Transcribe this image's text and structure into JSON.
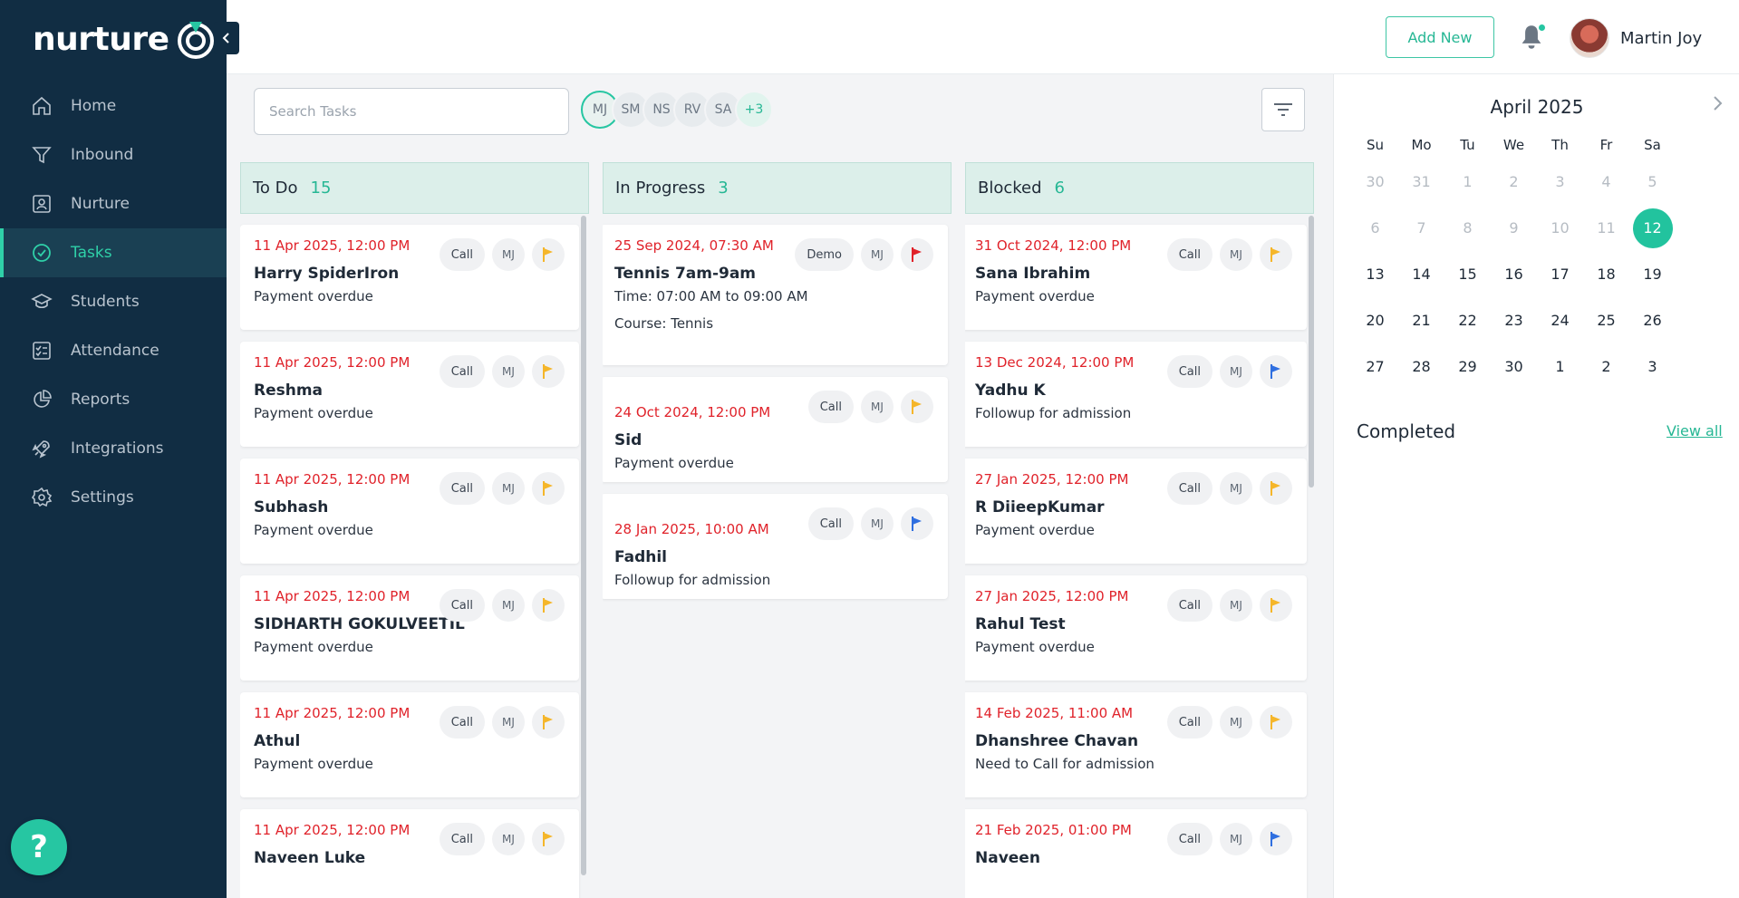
{
  "app": {
    "logo_text": "nurture",
    "colors": {
      "sidebar": "#112d43",
      "accent": "#26c6a2",
      "danger": "#e0222a",
      "flag_yellow": "#f5b62a",
      "flag_red": "#e0222a",
      "flag_blue": "#2f6fe0"
    }
  },
  "sidebar": {
    "items": [
      {
        "label": "Home",
        "icon": "home-icon"
      },
      {
        "label": "Inbound",
        "icon": "filter-funnel-icon"
      },
      {
        "label": "Nurture",
        "icon": "contact-card-icon"
      },
      {
        "label": "Tasks",
        "icon": "check-circle-icon"
      },
      {
        "label": "Students",
        "icon": "graduation-cap-icon"
      },
      {
        "label": "Attendance",
        "icon": "checklist-icon"
      },
      {
        "label": "Reports",
        "icon": "pie-chart-icon"
      },
      {
        "label": "Integrations",
        "icon": "rocket-icon"
      },
      {
        "label": "Settings",
        "icon": "gear-icon"
      }
    ],
    "help_label": "?"
  },
  "header": {
    "add_new": "Add New",
    "user_name": "Martin Joy"
  },
  "toolbar": {
    "search_placeholder": "Search Tasks",
    "assignees": [
      "MJ",
      "SM",
      "NS",
      "RV",
      "SA",
      "+3"
    ]
  },
  "columns": [
    {
      "title": "To Do",
      "count": "15",
      "cards": [
        {
          "date": "11 Apr 2025, 12:00 PM",
          "type": "Call",
          "owner": "MJ",
          "flag": "yellow",
          "name": "Harry SpiderIron",
          "desc": "Payment overdue"
        },
        {
          "date": "11 Apr 2025, 12:00 PM",
          "type": "Call",
          "owner": "MJ",
          "flag": "yellow",
          "name": "Reshma",
          "desc": "Payment overdue"
        },
        {
          "date": "11 Apr 2025, 12:00 PM",
          "type": "Call",
          "owner": "MJ",
          "flag": "yellow",
          "name": "Subhash",
          "desc": "Payment overdue"
        },
        {
          "date": "11 Apr 2025, 12:00 PM",
          "type": "Call",
          "owner": "MJ",
          "flag": "yellow",
          "name": "SIDHARTH GOKULVEETIL",
          "desc": "Payment overdue"
        },
        {
          "date": "11 Apr 2025, 12:00 PM",
          "type": "Call",
          "owner": "MJ",
          "flag": "yellow",
          "name": "Athul",
          "desc": "Payment overdue"
        },
        {
          "date": "11 Apr 2025, 12:00 PM",
          "type": "Call",
          "owner": "MJ",
          "flag": "yellow",
          "name": "Naveen Luke",
          "desc": ""
        }
      ]
    },
    {
      "title": "In Progress",
      "count": "3",
      "cards": [
        {
          "date": "25 Sep 2024, 07:30 AM",
          "type": "Demo",
          "owner": "MJ",
          "flag": "red",
          "name": "Tennis 7am-9am",
          "time_label": "Time:",
          "time_value": "07:00 AM to 09:00 AM",
          "course_label": "Course:",
          "course_value": "Tennis"
        },
        {
          "date": "24 Oct 2024, 12:00 PM",
          "type": "Call",
          "owner": "MJ",
          "flag": "yellow",
          "name": "Sid",
          "desc": "Payment overdue"
        },
        {
          "date": "28 Jan 2025, 10:00 AM",
          "type": "Call",
          "owner": "MJ",
          "flag": "blue",
          "name": "Fadhil",
          "desc": "Followup for admission"
        }
      ]
    },
    {
      "title": "Blocked",
      "count": "6",
      "cards": [
        {
          "date": "31 Oct 2024, 12:00 PM",
          "type": "Call",
          "owner": "MJ",
          "flag": "yellow",
          "name": "Sana Ibrahim",
          "desc": "Payment overdue"
        },
        {
          "date": "13 Dec 2024, 12:00 PM",
          "type": "Call",
          "owner": "MJ",
          "flag": "blue",
          "name": "Yadhu K",
          "desc": "Followup for admission"
        },
        {
          "date": "27 Jan 2025, 12:00 PM",
          "type": "Call",
          "owner": "MJ",
          "flag": "yellow",
          "name": "R DiieepKumar",
          "desc": "Payment overdue"
        },
        {
          "date": "27 Jan 2025, 12:00 PM",
          "type": "Call",
          "owner": "MJ",
          "flag": "yellow",
          "name": "Rahul Test",
          "desc": "Payment overdue"
        },
        {
          "date": "14 Feb 2025, 11:00 AM",
          "type": "Call",
          "owner": "MJ",
          "flag": "yellow",
          "name": "Dhanshree Chavan",
          "desc": "Need to Call for admission"
        },
        {
          "date": "21 Feb 2025, 01:00 PM",
          "type": "Call",
          "owner": "MJ",
          "flag": "blue",
          "name": "Naveen",
          "desc": ""
        }
      ]
    }
  ],
  "calendar": {
    "month": "April 2025",
    "weekdays": [
      "Su",
      "Mo",
      "Tu",
      "We",
      "Th",
      "Fr",
      "Sa"
    ],
    "weeks": [
      [
        [
          "30",
          "muted"
        ],
        [
          "31",
          "muted"
        ],
        [
          "1",
          "muted"
        ],
        [
          "2",
          "muted"
        ],
        [
          "3",
          "muted"
        ],
        [
          "4",
          "muted"
        ],
        [
          "5",
          "muted"
        ]
      ],
      [
        [
          "6",
          "muted"
        ],
        [
          "7",
          "muted"
        ],
        [
          "8",
          "muted"
        ],
        [
          "9",
          "muted"
        ],
        [
          "10",
          "muted"
        ],
        [
          "11",
          "muted"
        ],
        [
          "12",
          "today"
        ]
      ],
      [
        [
          "13",
          ""
        ],
        [
          "14",
          ""
        ],
        [
          "15",
          ""
        ],
        [
          "16",
          ""
        ],
        [
          "17",
          ""
        ],
        [
          "18",
          ""
        ],
        [
          "19",
          ""
        ]
      ],
      [
        [
          "20",
          ""
        ],
        [
          "21",
          ""
        ],
        [
          "22",
          ""
        ],
        [
          "23",
          ""
        ],
        [
          "24",
          ""
        ],
        [
          "25",
          ""
        ],
        [
          "26",
          ""
        ]
      ],
      [
        [
          "27",
          ""
        ],
        [
          "28",
          ""
        ],
        [
          "29",
          ""
        ],
        [
          "30",
          ""
        ],
        [
          "1",
          ""
        ],
        [
          "2",
          ""
        ],
        [
          "3",
          ""
        ]
      ]
    ]
  },
  "completed": {
    "title": "Completed",
    "view_all": "View all"
  }
}
